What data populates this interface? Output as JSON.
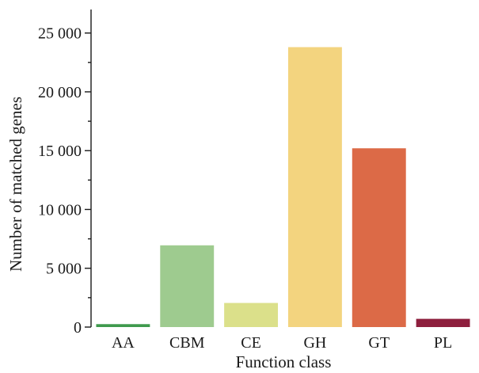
{
  "chart_data": {
    "type": "bar",
    "title": "",
    "xlabel": "Function class",
    "ylabel": "Number of matched genes",
    "categories": [
      "AA",
      "CBM",
      "CE",
      "GH",
      "GT",
      "PL"
    ],
    "values": [
      250,
      6950,
      2050,
      23800,
      15200,
      700
    ],
    "colors": [
      "#3f9a4d",
      "#9ecb8f",
      "#dbe08a",
      "#f3d47f",
      "#dc6a47",
      "#8e1f3e"
    ],
    "ylim": [
      0,
      27000
    ],
    "yticks": [
      0,
      5000,
      10000,
      15000,
      20000,
      25000
    ],
    "ytick_labels": [
      "0",
      "5 000",
      "10 000",
      "15 000",
      "20 000",
      "25 000"
    ],
    "grid": false,
    "legend": "none"
  }
}
